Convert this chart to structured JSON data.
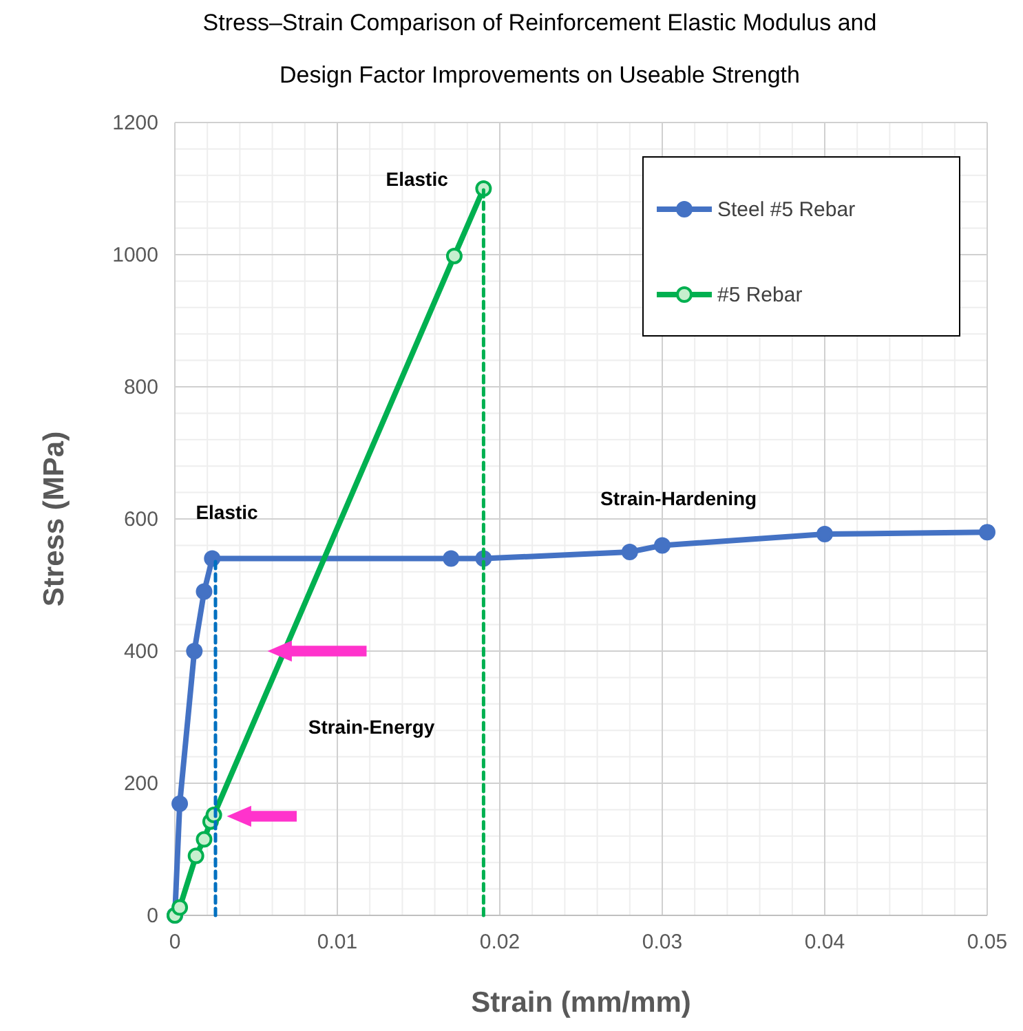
{
  "chart_data": {
    "type": "line",
    "title": "Stress–Strain Comparison of Reinforcement Elastic Modulus and Design Factor Improvements on Useable Strength",
    "xlabel": "Strain (mm/mm)",
    "ylabel": "Stress (MPa)",
    "xlim": [
      0,
      0.05
    ],
    "xticks": [
      0,
      0.01,
      0.02,
      0.03,
      0.04,
      0.05
    ],
    "ylim": [
      0,
      1200
    ],
    "yticks": [
      0,
      200,
      400,
      600,
      800,
      1000,
      1200
    ],
    "grid": true,
    "legend": "top right",
    "marker": "circle",
    "line_style": "solid",
    "series": [
      {
        "name": "Steel #5 Rebar",
        "color": "#4472c4",
        "x": [
          0,
          0.0003,
          0.0012,
          0.0018,
          0.0023,
          0.017,
          0.019,
          0.028,
          0.03,
          0.04,
          0.05
        ],
        "values": [
          0,
          169,
          400,
          490,
          540,
          540,
          540,
          550,
          560,
          577,
          580
        ]
      },
      {
        "name": "#5 Rebar",
        "color": "#00b050",
        "x": [
          0,
          0.0003,
          0.0013,
          0.0018,
          0.0022,
          0.0024,
          0.0172,
          0.019
        ],
        "values": [
          0,
          12,
          90,
          115,
          142,
          152,
          998,
          1100
        ]
      },
      {
        "color": "#0070c0",
        "x": [
          0.0025,
          0.0025
        ],
        "values": [
          0,
          540
        ],
        "line_style": "dashed",
        "marker": "none"
      },
      {
        "color": "#00b050",
        "x": [
          0.019,
          0.019
        ],
        "values": [
          0,
          1100
        ],
        "line_style": "dashed",
        "marker": "none"
      }
    ],
    "annotations": [
      "Elastic",
      "Elastic",
      "Strain-Hardening",
      "Strain-Energy"
    ]
  }
}
